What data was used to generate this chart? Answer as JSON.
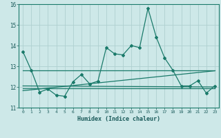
{
  "xlabel": "Humidex (Indice chaleur)",
  "ylabel": "",
  "bg_color": "#cde8e8",
  "line_color": "#1a7a6a",
  "grid_color": "#afd0d0",
  "xlim": [
    -0.5,
    23.5
  ],
  "ylim": [
    11,
    16
  ],
  "yticks": [
    11,
    12,
    13,
    14,
    15,
    16
  ],
  "xticks": [
    0,
    1,
    2,
    3,
    4,
    5,
    6,
    7,
    8,
    9,
    10,
    11,
    12,
    13,
    14,
    15,
    16,
    17,
    18,
    19,
    20,
    21,
    22,
    23
  ],
  "series1_x": [
    0,
    1,
    2,
    3,
    4,
    5,
    6,
    7,
    8,
    9,
    10,
    11,
    12,
    13,
    14,
    15,
    16,
    17,
    18,
    19,
    20,
    21,
    22,
    23
  ],
  "series1_y": [
    13.7,
    12.8,
    11.75,
    11.9,
    11.6,
    11.55,
    12.25,
    12.6,
    12.15,
    12.28,
    13.9,
    13.6,
    13.55,
    14.0,
    13.9,
    15.8,
    14.4,
    13.4,
    12.8,
    12.05,
    12.05,
    12.3,
    11.7,
    12.05
  ],
  "series2_x": [
    0,
    23
  ],
  "series2_y": [
    12.8,
    12.8
  ],
  "series3_x": [
    0,
    23
  ],
  "series3_y": [
    11.95,
    11.95
  ],
  "series4_x": [
    0,
    23
  ],
  "series4_y": [
    11.82,
    12.78
  ],
  "series5_x": [
    0,
    23
  ],
  "series5_y": [
    12.05,
    12.0
  ],
  "marker": "D",
  "markersize": 2.0,
  "linewidth": 0.9
}
